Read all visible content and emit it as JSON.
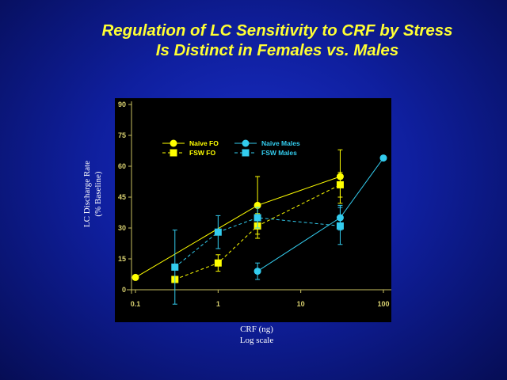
{
  "slide": {
    "title_line1": "Regulation of LC Sensitivity to CRF by Stress",
    "title_line2": "Is Distinct in Females vs. Males",
    "ylabel_line1": "LC Discharge Rate",
    "ylabel_line2": "(% Baseline)",
    "xlabel_line1": "CRF (ng)",
    "xlabel_line2": "Log scale"
  },
  "chart_data": {
    "type": "line",
    "xscale": "log",
    "xlim": [
      0.1,
      100
    ],
    "ylim": [
      0,
      90
    ],
    "xticks": [
      0.1,
      1,
      10,
      100
    ],
    "xtick_labels": [
      "0.1",
      "1",
      "10",
      "100"
    ],
    "yticks": [
      0,
      15,
      30,
      45,
      60,
      75,
      90
    ],
    "ytick_labels": [
      "0",
      "15",
      "30",
      "45",
      "60",
      "75",
      "90"
    ],
    "grid": false,
    "legend_position": "top-left",
    "background": "#000000",
    "series": [
      {
        "name": "Naive FO",
        "color": "#ffff00",
        "marker": "circle",
        "dash": "solid",
        "points": [
          {
            "x": 0.1,
            "y": 6
          },
          {
            "x": 3,
            "y": 41,
            "err": 14
          },
          {
            "x": 30,
            "y": 55,
            "err": 13
          }
        ]
      },
      {
        "name": "FSW FO",
        "color": "#ffff00",
        "marker": "square",
        "dash": "dashed",
        "points": [
          {
            "x": 0.3,
            "y": 5
          },
          {
            "x": 1,
            "y": 13,
            "err": 4
          },
          {
            "x": 3,
            "y": 31,
            "err": 6
          },
          {
            "x": 30,
            "y": 51,
            "err": 6
          }
        ]
      },
      {
        "name": "Naive Males",
        "color": "#33ccee",
        "marker": "circle",
        "dash": "solid",
        "points": [
          {
            "x": 3,
            "y": 9,
            "err": 4
          },
          {
            "x": 30,
            "y": 35,
            "err": 6
          },
          {
            "x": 100,
            "y": 64
          }
        ]
      },
      {
        "name": "FSW Males",
        "color": "#33ccee",
        "marker": "square",
        "dash": "dashed",
        "points": [
          {
            "x": 0.3,
            "y": 11,
            "err": 18
          },
          {
            "x": 1,
            "y": 28,
            "err": 8
          },
          {
            "x": 3,
            "y": 35,
            "err": 5
          },
          {
            "x": 30,
            "y": 31,
            "err": 9
          }
        ]
      }
    ]
  }
}
